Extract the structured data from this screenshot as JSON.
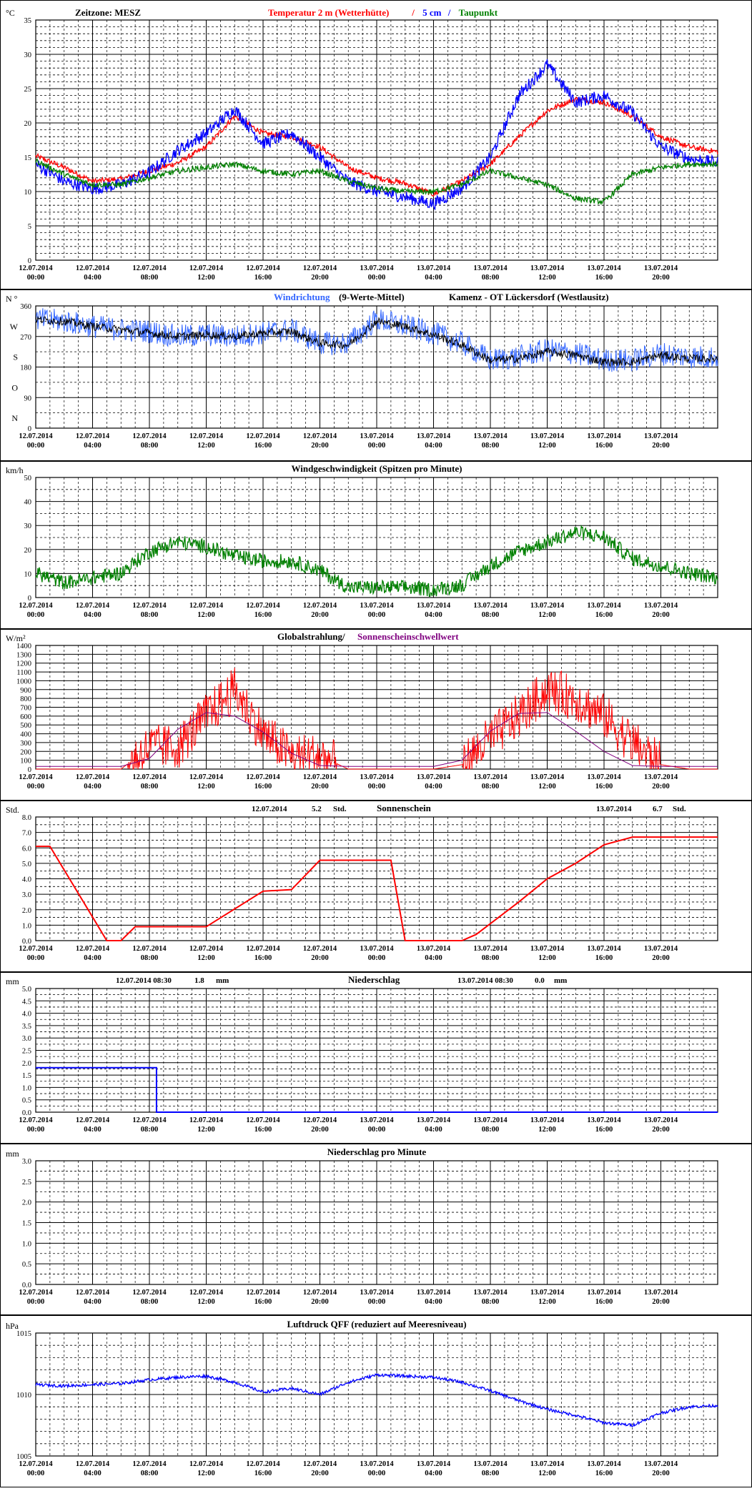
{
  "xticks": {
    "dates": [
      "12.07.2014",
      "12.07.2014",
      "12.07.2014",
      "12.07.2014",
      "12.07.2014",
      "12.07.2014",
      "13.07.2014",
      "13.07.2014",
      "13.07.2014",
      "13.07.2014",
      "13.07.2014",
      "13.07.2014"
    ],
    "times": [
      "00:00",
      "04:00",
      "08:00",
      "12:00",
      "16:00",
      "20:00",
      "00:00",
      "04:00",
      "08:00",
      "12:00",
      "16:00",
      "20:00"
    ]
  },
  "colors": {
    "red": "#ff0000",
    "blue": "#0000ff",
    "green": "#008000",
    "purple": "#800080",
    "lightblue": "#3366ff",
    "black": "#000000",
    "frame": "#000000"
  },
  "panels": [
    {
      "id": "temperature",
      "unit": "°C",
      "title": "Zeitzone: MESZ",
      "legend": [
        {
          "text": "Temperatur 2 m (Wetterhütte)",
          "color": "red"
        },
        {
          "text": "/",
          "color": "red"
        },
        {
          "text": "5 cm",
          "color": "blue"
        },
        {
          "text": "/",
          "color": "blue"
        },
        {
          "text": "Taupunkt",
          "color": "green"
        }
      ],
      "yticks": [
        "0",
        "5",
        "10",
        "15",
        "20",
        "25",
        "30",
        "35"
      ]
    },
    {
      "id": "wind-direction",
      "unit": "N °",
      "legend": [
        {
          "text": "Windrichtung",
          "color": "lightblue"
        },
        {
          "text": "(9-Werte-Mittel)",
          "color": "black"
        },
        {
          "text": "Kamenz - OT Lückersdorf (Westlausitz)",
          "color": "black"
        }
      ],
      "yticks": [
        "0",
        "90",
        "180",
        "270",
        "360"
      ],
      "ydir": [
        "N",
        "O",
        "S",
        "W"
      ]
    },
    {
      "id": "wind-speed",
      "unit": "km/h",
      "legend": [
        {
          "text": "Windgeschwindigkeit (Spitzen pro Minute)",
          "color": "black"
        }
      ],
      "yticks": [
        "0",
        "10",
        "20",
        "30",
        "40",
        "50"
      ]
    },
    {
      "id": "radiation",
      "unit": "W/m²",
      "legend": [
        {
          "text": "Globalstrahlung/",
          "color": "black"
        },
        {
          "text": "Sonnenscheinschwellwert",
          "color": "purple"
        }
      ],
      "yticks": [
        "0",
        "100",
        "200",
        "300",
        "400",
        "500",
        "600",
        "700",
        "800",
        "900",
        "1000",
        "1100",
        "1200",
        "1300",
        "1400"
      ]
    },
    {
      "id": "sunshine",
      "unit": "Std.",
      "legend": [
        {
          "text": "12.07.2014",
          "color": "black"
        },
        {
          "text": "5.2",
          "color": "black"
        },
        {
          "text": "Std.",
          "color": "black"
        },
        {
          "text": "Sonnenschein",
          "color": "black"
        },
        {
          "text": "13.07.2014",
          "color": "black"
        },
        {
          "text": "6.7",
          "color": "black"
        },
        {
          "text": "Std.",
          "color": "black"
        }
      ],
      "yticks": [
        "0.0",
        "1.0",
        "2.0",
        "3.0",
        "4.0",
        "5.0",
        "6.0",
        "7.0",
        "8.0"
      ]
    },
    {
      "id": "precipitation",
      "unit": "mm",
      "legend": [
        {
          "text": "12.07.2014 08:30",
          "color": "black"
        },
        {
          "text": "1.8",
          "color": "black"
        },
        {
          "text": "mm",
          "color": "black"
        },
        {
          "text": "Niederschlag",
          "color": "black"
        },
        {
          "text": "13.07.2014 08:30",
          "color": "black"
        },
        {
          "text": "0.0",
          "color": "black"
        },
        {
          "text": "mm",
          "color": "black"
        }
      ],
      "yticks": [
        "0.0",
        "0.5",
        "1.0",
        "1.5",
        "2.0",
        "2.5",
        "3.0",
        "3.5",
        "4.0",
        "4.5",
        "5.0"
      ]
    },
    {
      "id": "precip-minute",
      "unit": "mm",
      "legend": [
        {
          "text": "Niederschlag pro Minute",
          "color": "black"
        }
      ],
      "yticks": [
        "0.0",
        "0.5",
        "1.0",
        "1.5",
        "2.0",
        "2.5",
        "3.0"
      ]
    },
    {
      "id": "pressure",
      "unit": "hPa",
      "legend": [
        {
          "text": "Luftdruck QFF (reduziert auf Meeresniveau)",
          "color": "black"
        }
      ],
      "yticks": [
        "1005",
        "1010",
        "1015"
      ]
    }
  ],
  "chart_data": [
    {
      "type": "line",
      "panel": "temperature",
      "xlabel": "",
      "ylabel": "°C",
      "ylim": [
        0,
        35
      ],
      "x": [
        "12.07.2014 00:00",
        "12.07.2014 02:00",
        "12.07.2014 04:00",
        "12.07.2014 06:00",
        "12.07.2014 08:00",
        "12.07.2014 10:00",
        "12.07.2014 12:00",
        "12.07.2014 14:00",
        "12.07.2014 16:00",
        "12.07.2014 18:00",
        "12.07.2014 20:00",
        "12.07.2014 22:00",
        "13.07.2014 00:00",
        "13.07.2014 02:00",
        "13.07.2014 04:00",
        "13.07.2014 06:00",
        "13.07.2014 08:00",
        "13.07.2014 10:00",
        "13.07.2014 12:00",
        "13.07.2014 14:00",
        "13.07.2014 16:00",
        "13.07.2014 18:00",
        "13.07.2014 20:00",
        "13.07.2014 22:00",
        "13.07.2014 24:00"
      ],
      "series": [
        {
          "name": "Temperatur 2 m (Wetterhütte)",
          "color": "red",
          "values": [
            15.2,
            13.5,
            11.5,
            11.8,
            13.0,
            14.2,
            16.5,
            21.0,
            18.5,
            18.0,
            16.5,
            13.5,
            12.0,
            11.2,
            9.6,
            11.5,
            14.0,
            18.0,
            21.8,
            23.5,
            23.0,
            21.0,
            18.0,
            16.5,
            15.8
          ]
        },
        {
          "name": "5 cm",
          "color": "blue",
          "values": [
            14.0,
            11.5,
            10.4,
            11.0,
            12.8,
            16.0,
            18.5,
            22.0,
            17.0,
            18.5,
            15.0,
            11.5,
            10.0,
            9.2,
            8.2,
            10.5,
            15.0,
            24.0,
            28.5,
            23.0,
            24.0,
            21.5,
            16.5,
            14.8,
            14.2
          ]
        },
        {
          "name": "Taupunkt",
          "color": "green",
          "values": [
            14.5,
            12.5,
            11.0,
            11.0,
            12.0,
            13.0,
            13.5,
            14.0,
            13.0,
            12.5,
            13.0,
            11.5,
            10.5,
            10.0,
            10.0,
            11.0,
            13.0,
            12.0,
            11.0,
            9.0,
            8.5,
            12.5,
            13.5,
            14.0,
            14.0
          ]
        }
      ]
    },
    {
      "type": "line",
      "panel": "wind-direction",
      "ylabel": "°",
      "ylim": [
        0,
        360
      ],
      "x": [
        "12.07.2014 00:00",
        "12.07.2014 02:00",
        "12.07.2014 04:00",
        "12.07.2014 06:00",
        "12.07.2014 08:00",
        "12.07.2014 10:00",
        "12.07.2014 12:00",
        "12.07.2014 14:00",
        "12.07.2014 16:00",
        "12.07.2014 18:00",
        "12.07.2014 20:00",
        "12.07.2014 22:00",
        "13.07.2014 00:00",
        "13.07.2014 02:00",
        "13.07.2014 04:00",
        "13.07.2014 06:00",
        "13.07.2014 08:00",
        "13.07.2014 10:00",
        "13.07.2014 12:00",
        "13.07.2014 14:00",
        "13.07.2014 16:00",
        "13.07.2014 18:00",
        "13.07.2014 20:00",
        "13.07.2014 22:00",
        "13.07.2014 24:00"
      ],
      "series": [
        {
          "name": "Windrichtung",
          "color": "lightblue",
          "values": [
            320,
            315,
            300,
            290,
            285,
            270,
            275,
            270,
            280,
            290,
            250,
            250,
            320,
            300,
            280,
            250,
            200,
            210,
            230,
            220,
            200,
            200,
            220,
            210,
            210
          ]
        },
        {
          "name": "(9-Werte-Mittel)",
          "color": "black",
          "values": [
            320,
            315,
            300,
            290,
            280,
            270,
            275,
            270,
            280,
            285,
            250,
            245,
            315,
            300,
            275,
            245,
            200,
            205,
            225,
            215,
            195,
            195,
            215,
            205,
            205
          ]
        }
      ]
    },
    {
      "type": "line",
      "panel": "wind-speed",
      "ylabel": "km/h",
      "ylim": [
        0,
        50
      ],
      "x": [
        "12.07.2014 00:00",
        "12.07.2014 02:00",
        "12.07.2014 04:00",
        "12.07.2014 06:00",
        "12.07.2014 08:00",
        "12.07.2014 10:00",
        "12.07.2014 12:00",
        "12.07.2014 14:00",
        "12.07.2014 16:00",
        "12.07.2014 18:00",
        "12.07.2014 20:00",
        "12.07.2014 22:00",
        "13.07.2014 00:00",
        "13.07.2014 02:00",
        "13.07.2014 04:00",
        "13.07.2014 06:00",
        "13.07.2014 08:00",
        "13.07.2014 10:00",
        "13.07.2014 12:00",
        "13.07.2014 14:00",
        "13.07.2014 16:00",
        "13.07.2014 18:00",
        "13.07.2014 20:00",
        "13.07.2014 22:00",
        "13.07.2014 24:00"
      ],
      "series": [
        {
          "name": "Windgeschwindigkeit",
          "color": "green",
          "values": [
            9,
            5,
            7,
            9,
            18,
            22,
            20,
            16,
            14,
            14,
            10,
            3,
            3,
            3,
            2,
            4,
            12,
            18,
            22,
            26,
            24,
            15,
            12,
            9,
            7
          ]
        }
      ]
    },
    {
      "type": "line",
      "panel": "radiation",
      "ylabel": "W/m²",
      "ylim": [
        0,
        1400
      ],
      "x": [
        "12.07.2014 00:00",
        "12.07.2014 02:00",
        "12.07.2014 04:00",
        "12.07.2014 06:00",
        "12.07.2014 08:00",
        "12.07.2014 10:00",
        "12.07.2014 12:00",
        "12.07.2014 14:00",
        "12.07.2014 16:00",
        "12.07.2014 18:00",
        "12.07.2014 20:00",
        "12.07.2014 22:00",
        "13.07.2014 00:00",
        "13.07.2014 02:00",
        "13.07.2014 04:00",
        "13.07.2014 06:00",
        "13.07.2014 08:00",
        "13.07.2014 10:00",
        "13.07.2014 12:00",
        "13.07.2014 14:00",
        "13.07.2014 16:00",
        "13.07.2014 18:00",
        "13.07.2014 20:00",
        "13.07.2014 22:00",
        "13.07.2014 24:00"
      ],
      "series": [
        {
          "name": "Globalstrahlung",
          "color": "red",
          "values": [
            0,
            0,
            0,
            0,
            250,
            250,
            600,
            900,
            400,
            150,
            150,
            0,
            0,
            0,
            0,
            50,
            350,
            600,
            900,
            800,
            600,
            300,
            50,
            0,
            0
          ]
        },
        {
          "name": "Sonnenscheinschwellwert",
          "color": "purple",
          "values": [
            30,
            30,
            30,
            30,
            120,
            450,
            640,
            600,
            420,
            180,
            40,
            30,
            30,
            30,
            30,
            100,
            430,
            630,
            640,
            430,
            200,
            40,
            30,
            30,
            30
          ]
        }
      ]
    },
    {
      "type": "line",
      "panel": "sunshine",
      "ylabel": "Std.",
      "ylim": [
        0,
        8
      ],
      "x": [
        "12.07.2014 00:00",
        "12.07.2014 01:00",
        "12.07.2014 05:00",
        "12.07.2014 06:00",
        "12.07.2014 07:00",
        "12.07.2014 12:00",
        "12.07.2014 16:00",
        "12.07.2014 18:00",
        "12.07.2014 20:00",
        "12.07.2014 21:00",
        "13.07.2014 01:00",
        "13.07.2014 02:00",
        "13.07.2014 06:00",
        "13.07.2014 07:00",
        "13.07.2014 10:00",
        "13.07.2014 12:00",
        "13.07.2014 14:00",
        "13.07.2014 16:00",
        "13.07.2014 18:00",
        "13.07.2014 24:00"
      ],
      "series": [
        {
          "name": "Sonnenschein",
          "color": "red",
          "values": [
            6.1,
            6.1,
            0,
            0,
            0.9,
            0.9,
            3.2,
            3.3,
            5.2,
            5.2,
            5.2,
            0,
            0,
            0.4,
            2.5,
            4.0,
            5.0,
            6.2,
            6.7,
            6.7
          ]
        }
      ]
    },
    {
      "type": "line",
      "panel": "precipitation",
      "ylabel": "mm",
      "ylim": [
        0,
        5
      ],
      "x": [
        "12.07.2014 00:00",
        "12.07.2014 08:30",
        "13.07.2014 24:00"
      ],
      "series": [
        {
          "name": "Niederschlag",
          "color": "blue",
          "values": [
            1.8,
            0,
            0
          ]
        }
      ]
    },
    {
      "type": "line",
      "panel": "precip-minute",
      "ylabel": "mm",
      "ylim": [
        0,
        3
      ],
      "x": [],
      "series": []
    },
    {
      "type": "line",
      "panel": "pressure",
      "ylabel": "hPa",
      "ylim": [
        1005,
        1015
      ],
      "x": [
        "12.07.2014 00:00",
        "12.07.2014 02:00",
        "12.07.2014 04:00",
        "12.07.2014 06:00",
        "12.07.2014 08:00",
        "12.07.2014 10:00",
        "12.07.2014 12:00",
        "12.07.2014 14:00",
        "12.07.2014 16:00",
        "12.07.2014 18:00",
        "12.07.2014 20:00",
        "12.07.2014 22:00",
        "13.07.2014 00:00",
        "13.07.2014 02:00",
        "13.07.2014 04:00",
        "13.07.2014 06:00",
        "13.07.2014 08:00",
        "13.07.2014 10:00",
        "13.07.2014 12:00",
        "13.07.2014 14:00",
        "13.07.2014 16:00",
        "13.07.2014 18:00",
        "13.07.2014 20:00",
        "13.07.2014 22:00",
        "13.07.2014 24:00"
      ],
      "series": [
        {
          "name": "Luftdruck QFF",
          "color": "blue",
          "values": [
            1010.8,
            1010.7,
            1010.8,
            1010.9,
            1011.2,
            1011.4,
            1011.5,
            1011.0,
            1010.2,
            1010.5,
            1010.0,
            1011.0,
            1011.6,
            1011.5,
            1011.4,
            1011.0,
            1010.3,
            1009.5,
            1008.8,
            1008.3,
            1007.7,
            1007.5,
            1008.5,
            1009.0,
            1009.1
          ]
        }
      ]
    }
  ]
}
